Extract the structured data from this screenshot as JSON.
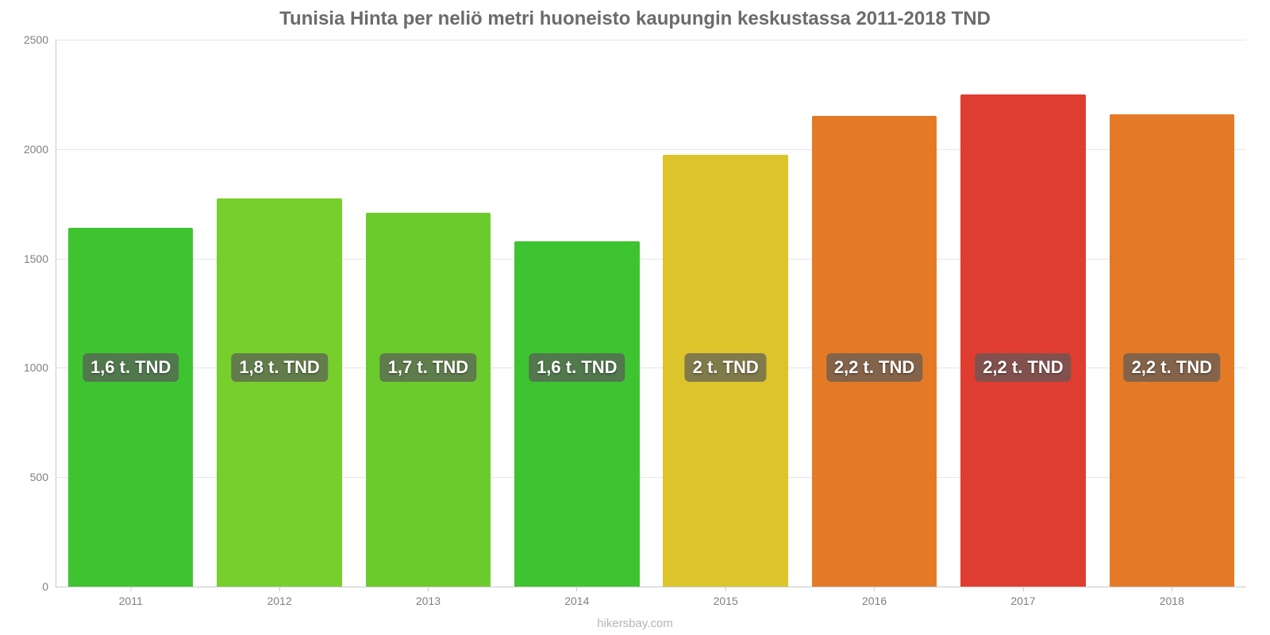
{
  "chart": {
    "type": "bar",
    "title": "Tunisia Hinta per neliö metri huoneisto kaupungin keskustassa 2011-2018 TND",
    "title_fontsize": 24,
    "title_color": "#6b6b6b",
    "background_color": "#ffffff",
    "grid_color": "#e6e6e6",
    "axis_color": "#c8c8c8",
    "tick_font_color": "#808080",
    "tick_fontsize": 14,
    "ylim": [
      0,
      2500
    ],
    "ytick_step": 500,
    "yticks": [
      "0",
      "500",
      "1000",
      "1500",
      "2000",
      "2500"
    ],
    "categories": [
      "2011",
      "2012",
      "2013",
      "2014",
      "2015",
      "2016",
      "2017",
      "2018"
    ],
    "values": [
      1640,
      1775,
      1710,
      1580,
      1975,
      2150,
      2250,
      2160
    ],
    "bar_labels": [
      "1,6 t. TND",
      "1,8 t. TND",
      "1,7 t. TND",
      "1,6 t. TND",
      "2 t. TND",
      "2,2 t. TND",
      "2,2 t. TND",
      "2,2 t. TND"
    ],
    "bar_colors": [
      "#3fc431",
      "#77cf2b",
      "#6bcb2d",
      "#3fc431",
      "#dcc52a",
      "#e57a26",
      "#e03d31",
      "#e57a26"
    ],
    "bar_width_ratio": 0.84,
    "bar_label_fontsize": 22,
    "bar_label_color": "#ffffff",
    "bar_label_bg": "rgba(90,90,90,0.7)",
    "label_y_value": 1000,
    "source": "hikersbay.com",
    "source_color": "#b5b5b5",
    "source_fontsize": 15
  }
}
